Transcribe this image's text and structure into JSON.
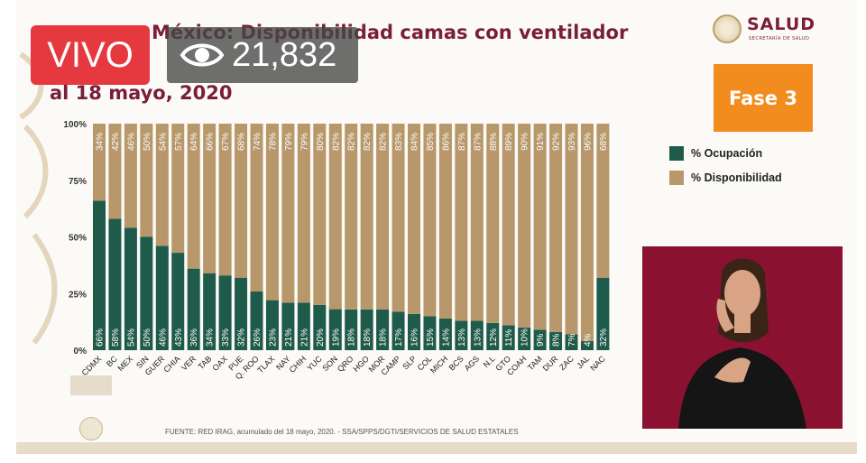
{
  "overlay": {
    "live_label": "VIVO",
    "views_count": "21,832",
    "views_icon": "eye-icon"
  },
  "slide": {
    "title": "México: Disponibilidad camas con ventilador",
    "subtitle": "al 18 mayo, 2020",
    "logo_text": "SALUD",
    "logo_subtext": "SECRETARÍA DE SALUD",
    "phase_label": "Fase 3",
    "footer": "FUENTE: RED IRAG, acumulado del 18 mayo, 2020.  -  SSA/SPPS/DGTI/SERVICIOS DE SALUD ESTATALES"
  },
  "colors": {
    "ocupacion": "#1e5b4a",
    "disponibilidad": "#b8976a",
    "brand": "#7a1e3a",
    "phase": "#f28c1e",
    "live": "#e6393f",
    "interpreter_bg": "#8a1230"
  },
  "chart_data": {
    "type": "bar",
    "stacked": true,
    "percent": true,
    "categories": [
      "CDMX",
      "BC",
      "MEX",
      "SIN",
      "GUER",
      "CHIA",
      "VER",
      "TAB",
      "OAX",
      "PUE",
      "Q. ROO",
      "TLAX",
      "NAY",
      "CHIH",
      "YUC",
      "SON",
      "QRO",
      "HGO",
      "MOR",
      "CAMP",
      "SLP",
      "COL",
      "MICH",
      "BCS",
      "AGS",
      "N.L",
      "GTO",
      "COAH",
      "TAM",
      "DUR",
      "ZAC",
      "JAL",
      "NAC"
    ],
    "series": [
      {
        "name": "% Ocupación",
        "values": [
          66,
          58,
          54,
          50,
          46,
          43,
          36,
          34,
          33,
          32,
          26,
          23,
          21,
          21,
          20,
          19,
          18,
          18,
          18,
          17,
          16,
          15,
          14,
          13,
          13,
          12,
          11,
          10,
          9,
          8,
          7,
          4,
          32
        ]
      },
      {
        "name": "% Disponibilidad",
        "values": [
          34,
          42,
          46,
          50,
          54,
          57,
          64,
          66,
          67,
          68,
          74,
          78,
          79,
          79,
          80,
          82,
          82,
          82,
          82,
          83,
          84,
          85,
          86,
          87,
          87,
          88,
          89,
          90,
          91,
          92,
          93,
          96,
          68
        ]
      }
    ],
    "yticks": [
      "0%",
      "25%",
      "50%",
      "75%",
      "100%"
    ],
    "ylim": [
      0,
      100
    ],
    "legend_position": "right"
  }
}
